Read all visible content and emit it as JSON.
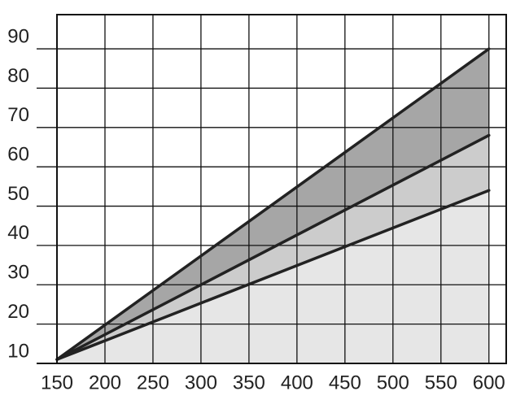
{
  "chart_data": {
    "type": "area",
    "x": [
      150,
      600
    ],
    "series": [
      {
        "color": "#a6a6a6",
        "values": [
          11,
          90
        ]
      },
      {
        "color": "#cccccc",
        "values": [
          11,
          68
        ]
      },
      {
        "color": "#e6e6e6",
        "values": [
          11,
          54
        ]
      }
    ],
    "xlim": [
      150,
      618
    ],
    "ylim": [
      10,
      98.7
    ],
    "xticks": [
      150,
      200,
      250,
      300,
      350,
      400,
      450,
      500,
      550,
      600
    ],
    "yticks": [
      10,
      20,
      30,
      40,
      50,
      60,
      70,
      80,
      90
    ],
    "grid": true
  }
}
